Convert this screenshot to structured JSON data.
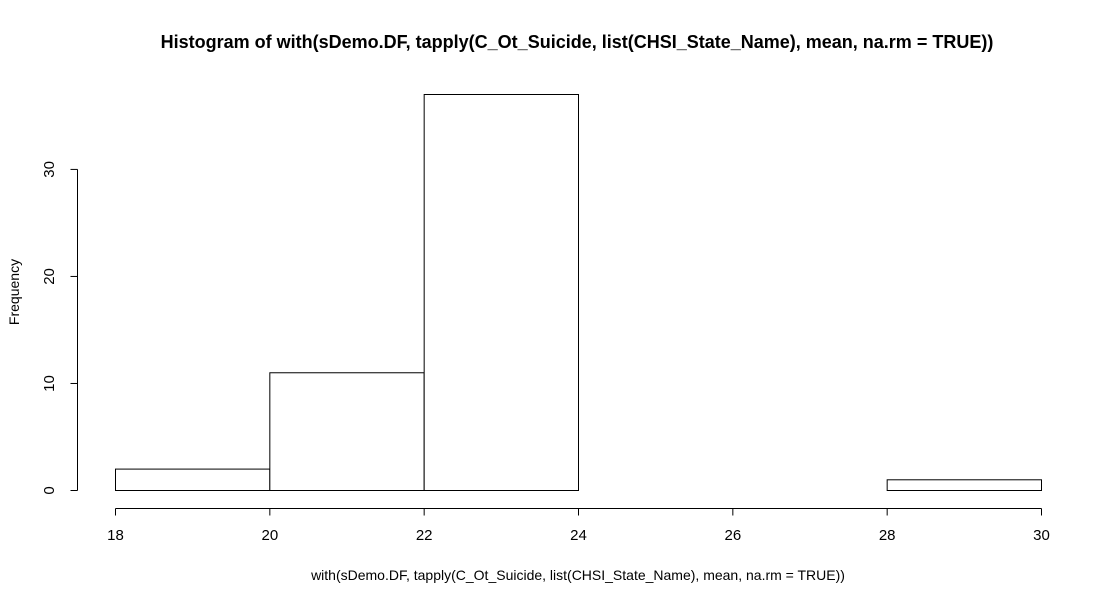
{
  "chart_data": {
    "type": "bar",
    "title": "Histogram of with(sDemo.DF, tapply(C_Ot_Suicide, list(CHSI_State_Name), mean, na.rm = TRUE))",
    "xlabel": "with(sDemo.DF, tapply(C_Ot_Suicide, list(CHSI_State_Name), mean, na.rm = TRUE))",
    "ylabel": "Frequency",
    "bins": [
      {
        "from": 18,
        "to": 20,
        "count": 2
      },
      {
        "from": 20,
        "to": 22,
        "count": 11
      },
      {
        "from": 22,
        "to": 24,
        "count": 37
      },
      {
        "from": 24,
        "to": 26,
        "count": 0
      },
      {
        "from": 26,
        "to": 28,
        "count": 0
      },
      {
        "from": 28,
        "to": 30,
        "count": 1
      }
    ],
    "x_ticks": [
      18,
      20,
      22,
      24,
      26,
      28,
      30
    ],
    "y_ticks": [
      0,
      10,
      20,
      30
    ],
    "xlim": [
      18,
      30
    ],
    "ylim": [
      0,
      37
    ],
    "grid": false,
    "legend": "none"
  }
}
